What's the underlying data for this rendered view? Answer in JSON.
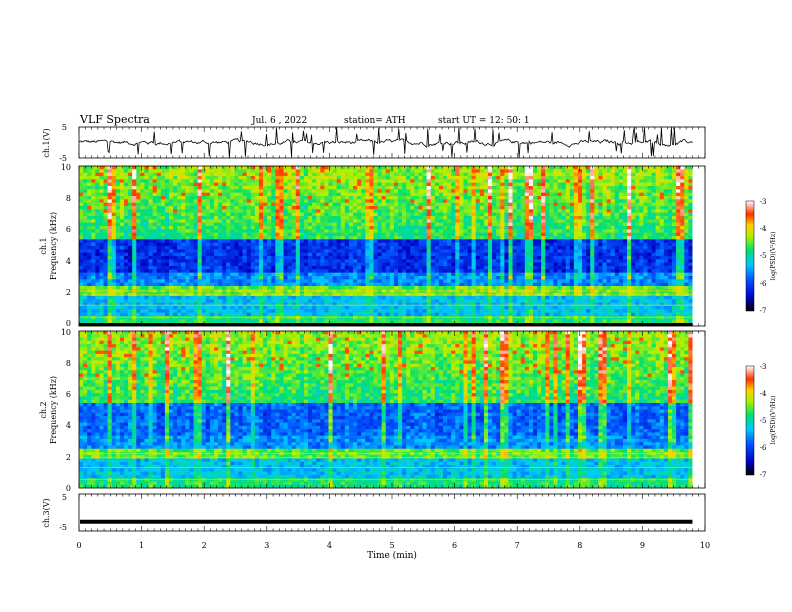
{
  "header": {
    "title": "VLF  Spectra",
    "date": "Jul.  6  , 2022",
    "station": "station= ATH",
    "start": "start  UT  =    12: 50: 1"
  },
  "chart_data": [
    {
      "type": "line",
      "ylabel": "ch.1(V)",
      "ylim": [
        -5,
        5
      ],
      "y_ticks": [
        "5",
        "-5"
      ],
      "xlim": [
        0,
        10
      ],
      "series": [
        {
          "values_hint": "noisy trace around 0 V with spikes",
          "level": 0
        }
      ]
    },
    {
      "type": "heatmap",
      "ylabel": "ch.1\nFrequency (kHz)",
      "ylabel_line1": "ch.1",
      "ylabel_line2": "Frequency  (kHz)",
      "ylim": [
        0,
        10
      ],
      "y_ticks": [
        "0",
        "2",
        "4",
        "6",
        "8",
        "10"
      ],
      "xlim": [
        0,
        9.8
      ],
      "colorbar": {
        "label": "log(PSD)(V²/Hz)",
        "ticks": [
          "-3",
          "-4",
          "-5",
          "-6",
          "-7"
        ],
        "range": [
          -7,
          -3
        ]
      }
    },
    {
      "type": "heatmap",
      "ylabel_line1": "ch.2",
      "ylabel_line2": "Frequency  (kHz)",
      "ylim": [
        0,
        10
      ],
      "y_ticks": [
        "0",
        "2",
        "4",
        "6",
        "8",
        "10"
      ],
      "xlim": [
        0,
        9.8
      ],
      "colorbar": {
        "label": "log(PSD)(V²/Hz)",
        "ticks": [
          "-3",
          "-4",
          "-5",
          "-6",
          "-7"
        ],
        "range": [
          -7,
          -3
        ]
      }
    },
    {
      "type": "line",
      "ylabel": "ch.3(V)",
      "ylim": [
        -5,
        5
      ],
      "y_ticks": [
        "5",
        "-5"
      ],
      "xlim": [
        0,
        10
      ],
      "series": [
        {
          "level": -2.5
        }
      ]
    }
  ],
  "xaxis": {
    "label": "Time  (min)",
    "ticks": [
      "0",
      "1",
      "2",
      "3",
      "4",
      "5",
      "6",
      "7",
      "8",
      "9",
      "10"
    ]
  }
}
